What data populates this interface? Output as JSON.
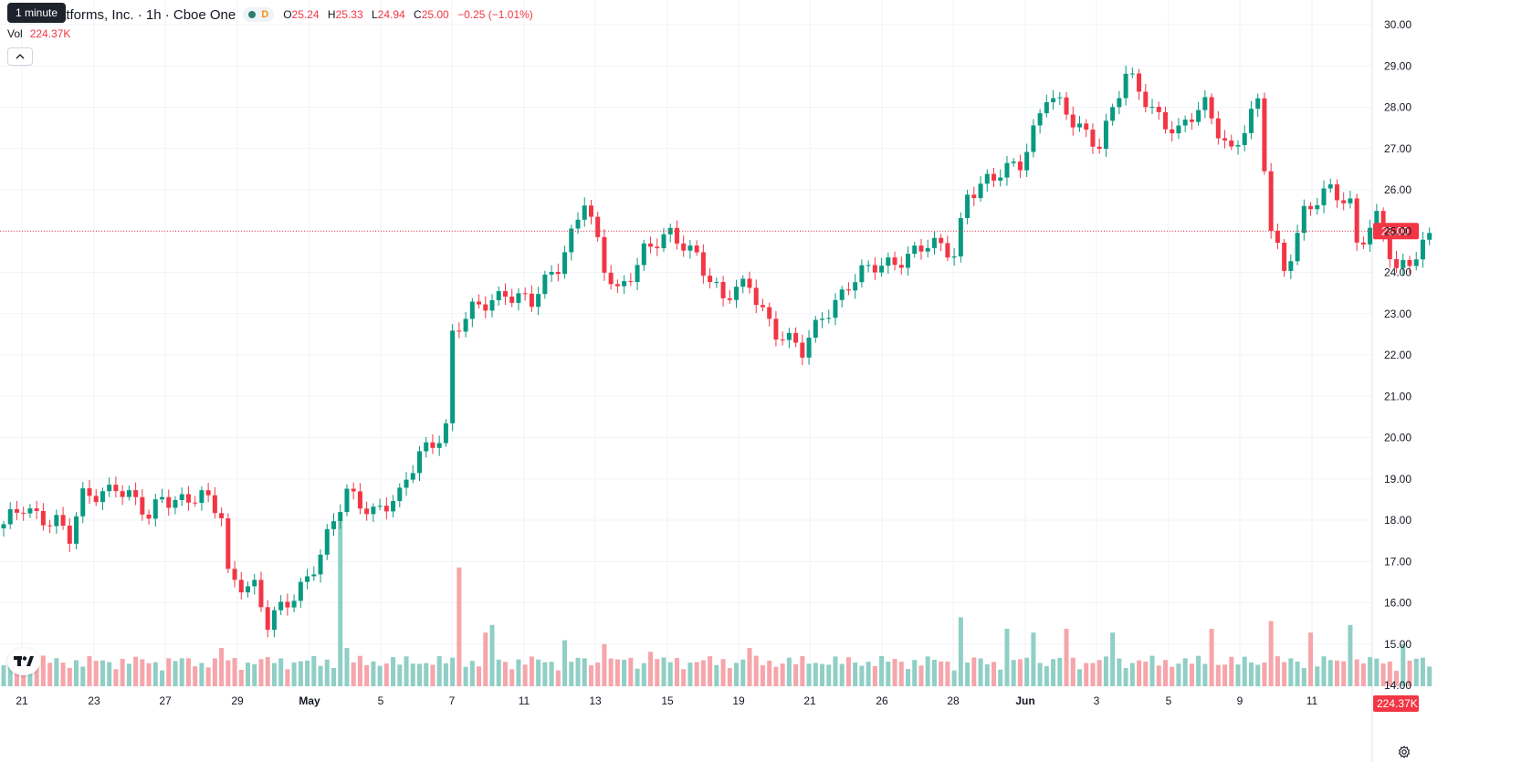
{
  "tooltip": "1 minute",
  "legend": {
    "title": "atforms, Inc. · 1h · Cboe One",
    "status_letter": "D",
    "o_label": "O",
    "o_value": "25.24",
    "h_label": "H",
    "h_value": "25.33",
    "l_label": "L",
    "l_value": "24.94",
    "c_label": "C",
    "c_value": "25.00",
    "change": "−0.25 (−1.01%)"
  },
  "volume": {
    "label": "Vol",
    "value": "224.37K"
  },
  "colors": {
    "up": "#089981",
    "down": "#f23645",
    "up_vol": "#8fcfc5",
    "down_vol": "#f6a5aa",
    "grid": "#f0f3fa",
    "price_line": "#f23645"
  },
  "icons": {
    "collapse": "chevron-up-icon",
    "logo": "tradingview-logo-icon",
    "settings": "gear-icon"
  },
  "chart_data": {
    "type": "candlestick",
    "interval": "1h",
    "y_axis": {
      "min": 14,
      "max": 30,
      "ticks": [
        "30.00",
        "29.00",
        "28.00",
        "27.00",
        "26.00",
        "25.00",
        "24.00",
        "23.00",
        "22.00",
        "21.00",
        "20.00",
        "19.00",
        "18.00",
        "17.00",
        "16.00",
        "15.00",
        "14.00"
      ]
    },
    "x_axis_labels": [
      "21",
      "23",
      "27",
      "29",
      "May",
      "5",
      "7",
      "11",
      "13",
      "15",
      "19",
      "21",
      "26",
      "28",
      "Jun",
      "3",
      "5",
      "9",
      "11"
    ],
    "last_price": "25.00",
    "volume_label": "224.37K",
    "anchor_closes": [
      [
        0,
        17.8
      ],
      [
        3,
        18.3
      ],
      [
        8,
        18.0
      ],
      [
        10,
        17.5
      ],
      [
        12,
        18.5
      ],
      [
        17,
        18.9
      ],
      [
        22,
        18.0
      ],
      [
        24,
        18.6
      ],
      [
        30,
        18.5
      ],
      [
        33,
        18.1
      ],
      [
        34,
        16.7
      ],
      [
        38,
        16.4
      ],
      [
        40,
        15.4
      ],
      [
        44,
        16.2
      ],
      [
        48,
        17.2
      ],
      [
        52,
        18.6
      ],
      [
        56,
        18.3
      ],
      [
        60,
        18.5
      ],
      [
        63,
        19.6
      ],
      [
        67,
        20.3
      ],
      [
        68,
        22.5
      ],
      [
        71,
        23.0
      ],
      [
        76,
        23.6
      ],
      [
        80,
        23.2
      ],
      [
        84,
        24.2
      ],
      [
        88,
        25.8
      ],
      [
        91,
        24.0
      ],
      [
        93,
        23.5
      ],
      [
        97,
        24.6
      ],
      [
        101,
        24.8
      ],
      [
        105,
        24.5
      ],
      [
        109,
        23.3
      ],
      [
        113,
        23.7
      ],
      [
        117,
        22.6
      ],
      [
        121,
        22.0
      ],
      [
        124,
        23.0
      ],
      [
        128,
        23.7
      ],
      [
        132,
        24.1
      ],
      [
        136,
        24.4
      ],
      [
        140,
        24.6
      ],
      [
        144,
        24.5
      ],
      [
        146,
        26.0
      ],
      [
        150,
        26.2
      ],
      [
        154,
        26.7
      ],
      [
        158,
        28.3
      ],
      [
        162,
        27.6
      ],
      [
        166,
        27.2
      ],
      [
        170,
        28.7
      ],
      [
        174,
        28.0
      ],
      [
        178,
        27.4
      ],
      [
        182,
        28.0
      ],
      [
        186,
        27.0
      ],
      [
        190,
        28.0
      ],
      [
        192,
        25.0
      ],
      [
        194,
        24.1
      ],
      [
        197,
        25.5
      ],
      [
        201,
        25.9
      ],
      [
        204,
        25.7
      ],
      [
        205,
        24.8
      ],
      [
        208,
        25.3
      ],
      [
        211,
        23.9
      ],
      [
        214,
        24.5
      ],
      [
        216,
        25.0
      ]
    ],
    "volumes": [
      [
        0,
        0.55
      ],
      [
        6,
        0.8
      ],
      [
        14,
        0.45
      ],
      [
        33,
        1.0
      ],
      [
        51,
        4.3
      ],
      [
        52,
        1.0
      ],
      [
        69,
        3.1
      ],
      [
        73,
        1.4
      ],
      [
        74,
        1.6
      ],
      [
        85,
        1.2
      ],
      [
        91,
        1.1
      ],
      [
        98,
        0.9
      ],
      [
        113,
        1.0
      ],
      [
        145,
        1.8
      ],
      [
        152,
        1.5
      ],
      [
        156,
        1.4
      ],
      [
        161,
        1.5
      ],
      [
        168,
        1.4
      ],
      [
        183,
        1.5
      ],
      [
        192,
        1.7
      ],
      [
        198,
        1.4
      ],
      [
        204,
        1.6
      ],
      [
        212,
        1.1
      ]
    ]
  }
}
